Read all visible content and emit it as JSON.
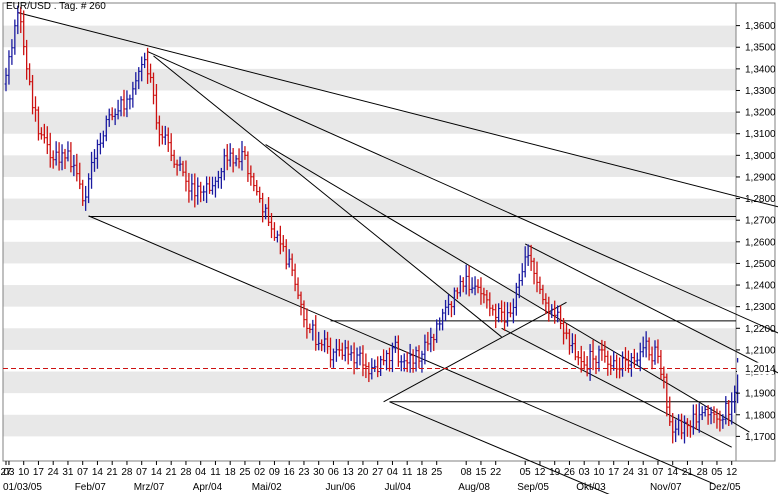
{
  "window": {
    "title": "EUR/USD . Tag. # 260"
  },
  "chart_data": {
    "type": "ohlc",
    "title": "EUR/USD . Tag. # 260",
    "xlabel": "",
    "ylabel": "",
    "ylim": [
      1.16,
      1.37
    ],
    "grid": true,
    "colors": {
      "up": "#1a1aa0",
      "down": "#cc1111",
      "band": "#e8e8e8",
      "current": "#cc1111"
    },
    "y_ticks": [
      {
        "v": 1.17,
        "label": "1,1700"
      },
      {
        "v": 1.18,
        "label": "1,1800"
      },
      {
        "v": 1.19,
        "label": "1,1900"
      },
      {
        "v": 1.2,
        "label": "1,2000"
      },
      {
        "v": 1.21,
        "label": "1,2100"
      },
      {
        "v": 1.22,
        "label": "1,2200"
      },
      {
        "v": 1.23,
        "label": "1,2300"
      },
      {
        "v": 1.24,
        "label": "1,2400"
      },
      {
        "v": 1.25,
        "label": "1,2500"
      },
      {
        "v": 1.26,
        "label": "1,2600"
      },
      {
        "v": 1.27,
        "label": "1,2700"
      },
      {
        "v": 1.28,
        "label": "1,2800"
      },
      {
        "v": 1.29,
        "label": "1,2900"
      },
      {
        "v": 1.3,
        "label": "1,3000"
      },
      {
        "v": 1.31,
        "label": "1,3100"
      },
      {
        "v": 1.32,
        "label": "1,3200"
      },
      {
        "v": 1.33,
        "label": "1,3300"
      },
      {
        "v": 1.34,
        "label": "1,3400"
      },
      {
        "v": 1.35,
        "label": "1,3500"
      },
      {
        "v": 1.36,
        "label": "1,3600"
      }
    ],
    "current_value": 1.2014,
    "current_label": "1,2014",
    "day_ticks": [
      "27",
      "03",
      "10",
      "17",
      "24",
      "31",
      "07",
      "14",
      "21",
      "28",
      "07",
      "14",
      "21",
      "28",
      "04",
      "11",
      "18",
      "25",
      "02",
      "09",
      "16",
      "23",
      "30",
      "06",
      "13",
      "20",
      "27",
      "04",
      "11",
      "18",
      "25",
      "08",
      "15",
      "22",
      "05",
      "12",
      "19",
      "26",
      "03",
      "10",
      "17",
      "24",
      "31",
      "07",
      "14",
      "21",
      "28",
      "05",
      "12"
    ],
    "day_tick_bars": [
      0,
      1,
      6,
      11,
      16,
      21,
      26,
      31,
      36,
      41,
      46,
      51,
      56,
      61,
      66,
      71,
      76,
      81,
      86,
      91,
      96,
      101,
      106,
      111,
      116,
      121,
      126,
      131,
      136,
      141,
      146,
      156,
      161,
      166,
      176,
      181,
      186,
      191,
      196,
      201,
      206,
      211,
      216,
      221,
      226,
      231,
      236,
      241,
      246
    ],
    "month_labels": [
      {
        "label": "01/03/05",
        "bar": 0
      },
      {
        "label": "Feb/07",
        "bar": 26
      },
      {
        "label": "Mrz/07",
        "bar": 46
      },
      {
        "label": "Apr/04",
        "bar": 66
      },
      {
        "label": "Mai/02",
        "bar": 86
      },
      {
        "label": "Jun/06",
        "bar": 111
      },
      {
        "label": "Jul/04",
        "bar": 131
      },
      {
        "label": "Aug/08",
        "bar": 156
      },
      {
        "label": "Sep/05",
        "bar": 176
      },
      {
        "label": "Okt/03",
        "bar": 196
      },
      {
        "label": "Nov/07",
        "bar": 221
      },
      {
        "label": "Dez/05",
        "bar": 241
      }
    ],
    "anchors": [
      [
        0,
        1.337
      ],
      [
        4,
        1.366
      ],
      [
        7,
        1.34
      ],
      [
        11,
        1.31
      ],
      [
        16,
        1.298
      ],
      [
        21,
        1.302
      ],
      [
        26,
        1.279
      ],
      [
        31,
        1.305
      ],
      [
        36,
        1.318
      ],
      [
        41,
        1.326
      ],
      [
        46,
        1.342
      ],
      [
        49,
        1.336
      ],
      [
        51,
        1.315
      ],
      [
        56,
        1.3
      ],
      [
        61,
        1.288
      ],
      [
        66,
        1.283
      ],
      [
        71,
        1.288
      ],
      [
        76,
        1.301
      ],
      [
        81,
        1.3
      ],
      [
        86,
        1.28
      ],
      [
        91,
        1.262
      ],
      [
        96,
        1.252
      ],
      [
        101,
        1.224
      ],
      [
        106,
        1.213
      ],
      [
        111,
        1.209
      ],
      [
        116,
        1.208
      ],
      [
        121,
        1.203
      ],
      [
        126,
        1.2
      ],
      [
        131,
        1.211
      ],
      [
        136,
        1.204
      ],
      [
        141,
        1.208
      ],
      [
        146,
        1.222
      ],
      [
        151,
        1.23
      ],
      [
        156,
        1.244
      ],
      [
        161,
        1.236
      ],
      [
        166,
        1.225
      ],
      [
        171,
        1.227
      ],
      [
        176,
        1.253
      ],
      [
        178,
        1.251
      ],
      [
        181,
        1.238
      ],
      [
        186,
        1.226
      ],
      [
        191,
        1.212
      ],
      [
        196,
        1.203
      ],
      [
        201,
        1.21
      ],
      [
        206,
        1.205
      ],
      [
        211,
        1.203
      ],
      [
        216,
        1.211
      ],
      [
        221,
        1.207
      ],
      [
        226,
        1.172
      ],
      [
        231,
        1.175
      ],
      [
        236,
        1.181
      ],
      [
        241,
        1.178
      ],
      [
        246,
        1.186
      ],
      [
        248,
        1.2014
      ]
    ],
    "trendlines": [
      {
        "name": "trendline-major-resistance",
        "from": [
          4,
          1.366
        ],
        "to": [
          268,
          1.274
        ]
      },
      {
        "name": "trendline-channel-upper-a",
        "from": [
          48,
          1.348
        ],
        "to": [
          268,
          1.214
        ]
      },
      {
        "name": "trendline-channel-lower-a",
        "from": [
          28,
          1.272
        ],
        "to": [
          240,
          1.148
        ]
      },
      {
        "name": "trendline-steep-a",
        "from": [
          50,
          1.346
        ],
        "to": [
          168,
          1.216
        ]
      },
      {
        "name": "trendline-steep-b",
        "from": [
          88,
          1.305
        ],
        "to": [
          252,
          1.172
        ]
      },
      {
        "name": "trendline-channel-upper-b",
        "from": [
          176,
          1.259
        ],
        "to": [
          268,
          1.195
        ]
      },
      {
        "name": "trendline-channel-lower-b",
        "from": [
          168,
          1.22
        ],
        "to": [
          246,
          1.165
        ]
      },
      {
        "name": "trendline-support-rise",
        "from": [
          128,
          1.186
        ],
        "to": [
          190,
          1.232
        ]
      },
      {
        "name": "trendline-lower-diag",
        "from": [
          130,
          1.186
        ],
        "to": [
          210,
          1.14
        ]
      }
    ],
    "hlines": [
      {
        "name": "level-1-2717",
        "value": 1.2717,
        "from_bar": 28
      },
      {
        "name": "level-1-2234",
        "value": 1.2234,
        "from_bar": 110
      },
      {
        "name": "level-1-1860",
        "value": 1.186,
        "from_bar": 130
      }
    ]
  }
}
